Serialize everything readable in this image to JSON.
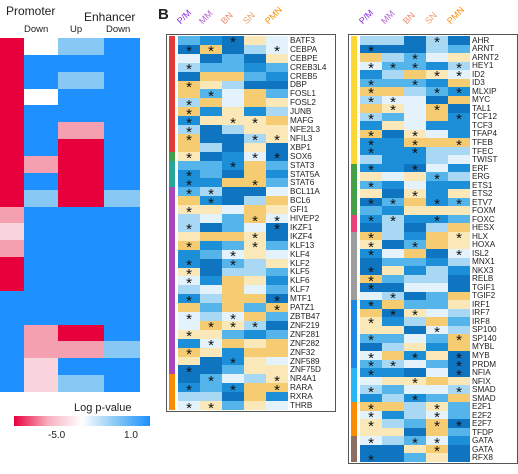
{
  "panelA": {
    "promoter_label": "Promoter",
    "enhancer_label": "Enhancer",
    "down_label": "Down",
    "up_label": "Up",
    "legend_title": "Log p-value",
    "tick_low": "-5.0",
    "tick_high": "1.0",
    "colors": {
      "red": "#e8003c",
      "pink": "#f5a0b0",
      "lightpink": "#fbd5dd",
      "blue": "#1e90ff",
      "lightblue": "#87c8f5",
      "white": "#ffffff"
    },
    "heat": [
      [
        "red",
        "white",
        "lightblue",
        "blue"
      ],
      [
        "red",
        "blue",
        "blue",
        "blue"
      ],
      [
        "red",
        "blue",
        "lightblue",
        "blue"
      ],
      [
        "red",
        "white",
        "blue",
        "blue"
      ],
      [
        "red",
        "blue",
        "blue",
        "blue"
      ],
      [
        "red",
        "blue",
        "pink",
        "blue"
      ],
      [
        "red",
        "blue",
        "red",
        "blue"
      ],
      [
        "red",
        "pink",
        "red",
        "blue"
      ],
      [
        "red",
        "blue",
        "red",
        "blue"
      ],
      [
        "red",
        "lightblue",
        "red",
        "lightblue"
      ],
      [
        "pink",
        "blue",
        "blue",
        "blue"
      ],
      [
        "lightpink",
        "blue",
        "blue",
        "blue"
      ],
      [
        "pink",
        "blue",
        "blue",
        "blue"
      ],
      [
        "red",
        "blue",
        "blue",
        "blue"
      ],
      [
        "red",
        "blue",
        "blue",
        "blue"
      ],
      [
        "blue",
        "blue",
        "blue",
        "blue"
      ],
      [
        "blue",
        "blue",
        "blue",
        "blue"
      ],
      [
        "blue",
        "pink",
        "red",
        "blue"
      ],
      [
        "blue",
        "pink",
        "pink",
        "lightblue"
      ],
      [
        "blue",
        "lightpink",
        "blue",
        "blue"
      ],
      [
        "blue",
        "lightpink",
        "lightblue",
        "blue"
      ]
    ]
  },
  "panelB": {
    "letter": "B",
    "column_titles": [
      {
        "text": "P/M",
        "color": "#8a2be2"
      },
      {
        "text": "MM",
        "color": "#b266cc"
      },
      {
        "text": "BN",
        "color": "#f08a6a"
      },
      {
        "text": "SN",
        "color": "#f0a070"
      },
      {
        "text": "PMN",
        "color": "#ff8c00"
      }
    ],
    "left_genes": [
      "BATF3",
      "CEBPA",
      "CEBPE",
      "CREB3L4",
      "CREB5",
      "DBP",
      "FOSL1",
      "FOSL2",
      "JUNB",
      "MAFG",
      "NFE2L3",
      "NFIL3",
      "XBP1",
      "SOX6",
      "STAT3",
      "STAT5A",
      "STAT6",
      "BCL11A",
      "BCL6",
      "GFI1",
      "HIVEP2",
      "IKZF1",
      "IKZF4",
      "KLF13",
      "KLF4",
      "KLF2",
      "KLF5",
      "KLF6",
      "KLF7",
      "MTF1",
      "PATZ1",
      "ZBTB47",
      "ZNF219",
      "ZNF281",
      "ZNF282",
      "ZNF32",
      "ZNF589",
      "ZNF75D",
      "NR4A1",
      "RARA",
      "RXRA",
      "THRB"
    ],
    "right_genes": [
      "AHR",
      "ARNT",
      "ARNT2",
      "HEY1",
      "ID2",
      "ID3",
      "MLXIP",
      "MYC",
      "TAL1",
      "TCF12",
      "TCF3",
      "TFAP4",
      "TFEB",
      "TFEC",
      "TWIST",
      "ERF",
      "ERG",
      "ETS1",
      "ETS2",
      "ETV7",
      "FOXM",
      "FOXC",
      "HESX",
      "HLX",
      "HOXA",
      "ISL2",
      "MNX1",
      "NKX3",
      "RELB",
      "TGIF1",
      "TGIF2",
      "IRF1",
      "IRF7",
      "IRF8",
      "SP100",
      "SP140",
      "MYBL",
      "MYB",
      "PRDM",
      "NFIA",
      "NFIX",
      "SMAD",
      "SMAD",
      "E2F1",
      "E2F2",
      "E2F7",
      "TFDP",
      "GATA",
      "GATA",
      "RFX8"
    ]
  }
}
